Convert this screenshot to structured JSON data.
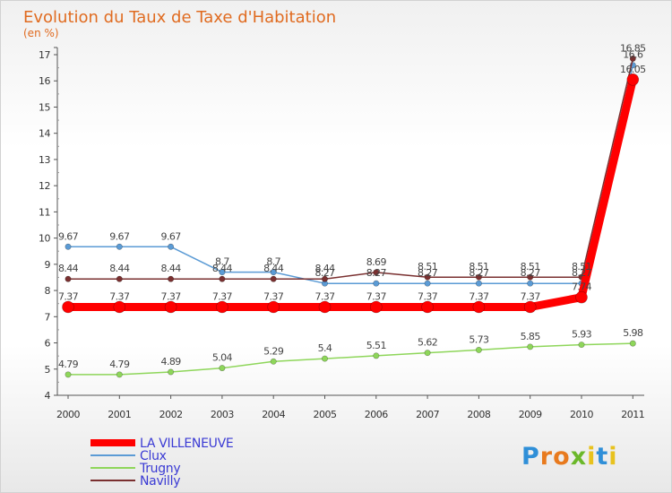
{
  "chart_data": {
    "type": "line",
    "title": "Evolution du Taux de Taxe d'Habitation",
    "subtitle": "(en %)",
    "xlabel": "",
    "ylabel": "",
    "x": [
      "2000",
      "2001",
      "2002",
      "2003",
      "2004",
      "2005",
      "2006",
      "2007",
      "2008",
      "2009",
      "2010",
      "2011"
    ],
    "ylim": [
      4,
      17
    ],
    "yticks": [
      "4",
      "5",
      "6",
      "7",
      "8",
      "9",
      "10",
      "11",
      "12",
      "13",
      "14",
      "15",
      "16",
      "17"
    ],
    "grid": false,
    "legend_position": "bottom-left",
    "series": [
      {
        "name": "LA VILLENEUVE",
        "color": "#ff0000",
        "values": [
          7.37,
          7.37,
          7.37,
          7.37,
          7.37,
          7.37,
          7.37,
          7.37,
          7.37,
          7.37,
          7.74,
          16.05
        ],
        "labels": [
          "7.37",
          "7.37",
          "7.37",
          "7.37",
          "7.37",
          "7.37",
          "7.37",
          "7.37",
          "7.37",
          "7.37",
          "7.74",
          "16.05"
        ]
      },
      {
        "name": "Clux",
        "color": "#5b9bd5",
        "values": [
          9.67,
          9.67,
          9.67,
          8.7,
          8.7,
          8.27,
          8.27,
          8.27,
          8.27,
          8.27,
          8.27,
          16.6
        ],
        "labels": [
          "9.67",
          "9.67",
          "9.67",
          "8.7",
          "8.7",
          "8.27",
          "8.27",
          "8.27",
          "8.27",
          "8.27",
          "8.27",
          "16.6"
        ]
      },
      {
        "name": "Trugny",
        "color": "#8ed65a",
        "values": [
          4.79,
          4.79,
          4.89,
          5.04,
          5.29,
          5.4,
          5.51,
          5.62,
          5.73,
          5.85,
          5.93,
          5.98
        ],
        "labels": [
          "4.79",
          "4.79",
          "4.89",
          "5.04",
          "5.29",
          "5.4",
          "5.51",
          "5.62",
          "5.73",
          "5.85",
          "5.93",
          "5.98"
        ]
      },
      {
        "name": "Navilly",
        "color": "#7a3030",
        "values": [
          8.44,
          8.44,
          8.44,
          8.44,
          8.44,
          8.44,
          8.69,
          8.51,
          8.51,
          8.51,
          8.51,
          16.85
        ],
        "labels": [
          "8.44",
          "8.44",
          "8.44",
          "8.44",
          "8.44",
          "8.44",
          "8.69",
          "8.51",
          "8.51",
          "8.51",
          "8.51",
          "16.85"
        ]
      }
    ]
  },
  "branding": {
    "logo_letters": [
      "P",
      "r",
      "o",
      "x",
      "i",
      "t",
      "i"
    ],
    "logo_colors": [
      "#2f8fd8",
      "#e87a1e",
      "#e87a1e",
      "#6bb82a",
      "#e8c21e",
      "#2f8fd8",
      "#e8c21e"
    ]
  }
}
